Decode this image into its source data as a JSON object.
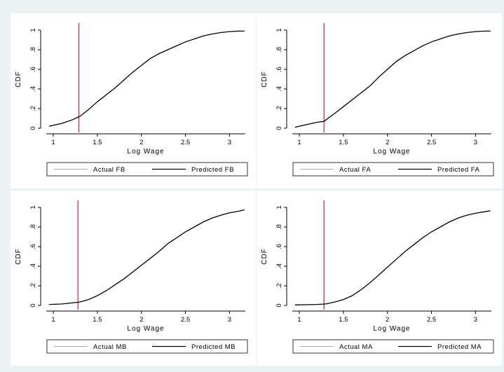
{
  "background_color": "#eaf2f3",
  "chart_data": [
    {
      "type": "line",
      "xlabel": "Log Wage",
      "ylabel": "CDF",
      "xlim": [
        0.92,
        3.18
      ],
      "ylim": [
        0,
        1
      ],
      "x_ticks": [
        "1",
        "1.5",
        "2",
        "2.5",
        "3"
      ],
      "y_ticks": [
        "0",
        ".2",
        ".4",
        ".6",
        ".8",
        "1"
      ],
      "vline": {
        "x": 1.29,
        "color": "#c8184a"
      },
      "legend": [
        "Actual FB",
        "Predicted FB"
      ],
      "series": [
        {
          "name": "Actual FB",
          "color": "#909090",
          "x": [
            0.95,
            1.1,
            1.2,
            1.3,
            1.4,
            1.5,
            1.6,
            1.7,
            1.8,
            1.9,
            2.0,
            2.1,
            2.2,
            2.3,
            2.4,
            2.5,
            2.6,
            2.7,
            2.8,
            2.9,
            3.0,
            3.1,
            3.17
          ],
          "y": [
            0.02,
            0.05,
            0.08,
            0.12,
            0.19,
            0.27,
            0.34,
            0.41,
            0.49,
            0.57,
            0.64,
            0.71,
            0.76,
            0.8,
            0.84,
            0.88,
            0.91,
            0.94,
            0.96,
            0.975,
            0.985,
            0.99,
            0.99
          ]
        },
        {
          "name": "Predicted FB",
          "color": "#000000",
          "x": [
            0.95,
            1.1,
            1.2,
            1.3,
            1.4,
            1.5,
            1.6,
            1.7,
            1.8,
            1.9,
            2.0,
            2.1,
            2.2,
            2.3,
            2.4,
            2.5,
            2.6,
            2.7,
            2.8,
            2.9,
            3.0,
            3.1,
            3.17
          ],
          "y": [
            0.02,
            0.05,
            0.08,
            0.12,
            0.19,
            0.27,
            0.34,
            0.41,
            0.49,
            0.57,
            0.64,
            0.71,
            0.76,
            0.8,
            0.84,
            0.88,
            0.91,
            0.94,
            0.96,
            0.975,
            0.985,
            0.99,
            0.99
          ]
        }
      ]
    },
    {
      "type": "line",
      "xlabel": "Log Wage",
      "ylabel": "CDF",
      "xlim": [
        0.92,
        3.18
      ],
      "ylim": [
        0,
        1
      ],
      "x_ticks": [
        "1",
        "1.5",
        "2",
        "2.5",
        "3"
      ],
      "y_ticks": [
        "0",
        ".2",
        ".4",
        ".6",
        ".8",
        "1"
      ],
      "vline": {
        "x": 1.28,
        "color": "#c8184a"
      },
      "legend": [
        "Actual FA",
        "Predicted FA"
      ],
      "series": [
        {
          "name": "Actual FA",
          "color": "#909090",
          "x": [
            0.95,
            1.1,
            1.2,
            1.28,
            1.4,
            1.5,
            1.6,
            1.7,
            1.8,
            1.9,
            2.0,
            2.1,
            2.2,
            2.3,
            2.4,
            2.5,
            2.6,
            2.7,
            2.8,
            2.9,
            3.0,
            3.1,
            3.17
          ],
          "y": [
            0.01,
            0.04,
            0.06,
            0.07,
            0.15,
            0.22,
            0.29,
            0.36,
            0.43,
            0.52,
            0.6,
            0.68,
            0.74,
            0.79,
            0.84,
            0.88,
            0.91,
            0.94,
            0.96,
            0.975,
            0.985,
            0.99,
            0.99
          ]
        },
        {
          "name": "Predicted FA",
          "color": "#000000",
          "x": [
            0.95,
            1.1,
            1.2,
            1.28,
            1.4,
            1.5,
            1.6,
            1.7,
            1.8,
            1.9,
            2.0,
            2.1,
            2.2,
            2.3,
            2.4,
            2.5,
            2.6,
            2.7,
            2.8,
            2.9,
            3.0,
            3.1,
            3.17
          ],
          "y": [
            0.01,
            0.04,
            0.06,
            0.07,
            0.15,
            0.22,
            0.29,
            0.36,
            0.43,
            0.52,
            0.6,
            0.68,
            0.74,
            0.79,
            0.84,
            0.88,
            0.91,
            0.94,
            0.96,
            0.975,
            0.985,
            0.99,
            0.99
          ]
        }
      ]
    },
    {
      "type": "line",
      "xlabel": "Log Wage",
      "ylabel": "CDF",
      "xlim": [
        0.92,
        3.18
      ],
      "ylim": [
        0,
        1
      ],
      "x_ticks": [
        "1",
        "1.5",
        "2",
        "2.5",
        "3"
      ],
      "y_ticks": [
        "0",
        ".2",
        ".4",
        ".6",
        ".8",
        "1"
      ],
      "vline": {
        "x": 1.28,
        "color": "#c8184a"
      },
      "legend": [
        "Actual MB",
        "Predicted MB"
      ],
      "series": [
        {
          "name": "Actual MB",
          "color": "#909090",
          "x": [
            0.95,
            1.1,
            1.2,
            1.3,
            1.4,
            1.5,
            1.6,
            1.7,
            1.8,
            1.9,
            2.0,
            2.1,
            2.2,
            2.3,
            2.4,
            2.5,
            2.6,
            2.7,
            2.8,
            2.9,
            3.0,
            3.1,
            3.17
          ],
          "y": [
            0.01,
            0.015,
            0.025,
            0.035,
            0.06,
            0.1,
            0.15,
            0.21,
            0.27,
            0.34,
            0.41,
            0.48,
            0.55,
            0.63,
            0.69,
            0.75,
            0.8,
            0.85,
            0.89,
            0.92,
            0.945,
            0.96,
            0.975
          ]
        },
        {
          "name": "Predicted MB",
          "color": "#000000",
          "x": [
            0.95,
            1.1,
            1.2,
            1.3,
            1.4,
            1.5,
            1.6,
            1.7,
            1.8,
            1.9,
            2.0,
            2.1,
            2.2,
            2.3,
            2.4,
            2.5,
            2.6,
            2.7,
            2.8,
            2.9,
            3.0,
            3.1,
            3.17
          ],
          "y": [
            0.01,
            0.015,
            0.025,
            0.035,
            0.06,
            0.1,
            0.15,
            0.21,
            0.27,
            0.34,
            0.41,
            0.48,
            0.55,
            0.63,
            0.69,
            0.75,
            0.8,
            0.85,
            0.89,
            0.92,
            0.945,
            0.96,
            0.975
          ]
        }
      ]
    },
    {
      "type": "line",
      "xlabel": "Log Wage",
      "ylabel": "CDF",
      "xlim": [
        0.92,
        3.18
      ],
      "ylim": [
        0,
        1
      ],
      "x_ticks": [
        "1",
        "1.5",
        "2",
        "2.5",
        "3"
      ],
      "y_ticks": [
        "0",
        ".2",
        ".4",
        ".6",
        ".8",
        "1"
      ],
      "vline": {
        "x": 1.28,
        "color": "#c8184a"
      },
      "legend": [
        "Actual MA",
        "Predicted MA"
      ],
      "series": [
        {
          "name": "Actual MA",
          "color": "#909090",
          "x": [
            0.95,
            1.1,
            1.2,
            1.3,
            1.4,
            1.5,
            1.6,
            1.7,
            1.8,
            1.9,
            2.0,
            2.1,
            2.2,
            2.3,
            2.4,
            2.5,
            2.6,
            2.7,
            2.8,
            2.9,
            3.0,
            3.1,
            3.17
          ],
          "y": [
            0.005,
            0.008,
            0.01,
            0.015,
            0.035,
            0.06,
            0.1,
            0.16,
            0.23,
            0.31,
            0.39,
            0.47,
            0.55,
            0.62,
            0.69,
            0.75,
            0.8,
            0.85,
            0.89,
            0.92,
            0.94,
            0.955,
            0.965
          ]
        },
        {
          "name": "Predicted MA",
          "color": "#000000",
          "x": [
            0.95,
            1.1,
            1.2,
            1.3,
            1.4,
            1.5,
            1.6,
            1.7,
            1.8,
            1.9,
            2.0,
            2.1,
            2.2,
            2.3,
            2.4,
            2.5,
            2.6,
            2.7,
            2.8,
            2.9,
            3.0,
            3.1,
            3.17
          ],
          "y": [
            0.005,
            0.008,
            0.01,
            0.015,
            0.035,
            0.06,
            0.1,
            0.16,
            0.23,
            0.31,
            0.39,
            0.47,
            0.55,
            0.62,
            0.69,
            0.75,
            0.8,
            0.85,
            0.89,
            0.92,
            0.94,
            0.955,
            0.965
          ]
        }
      ]
    }
  ]
}
